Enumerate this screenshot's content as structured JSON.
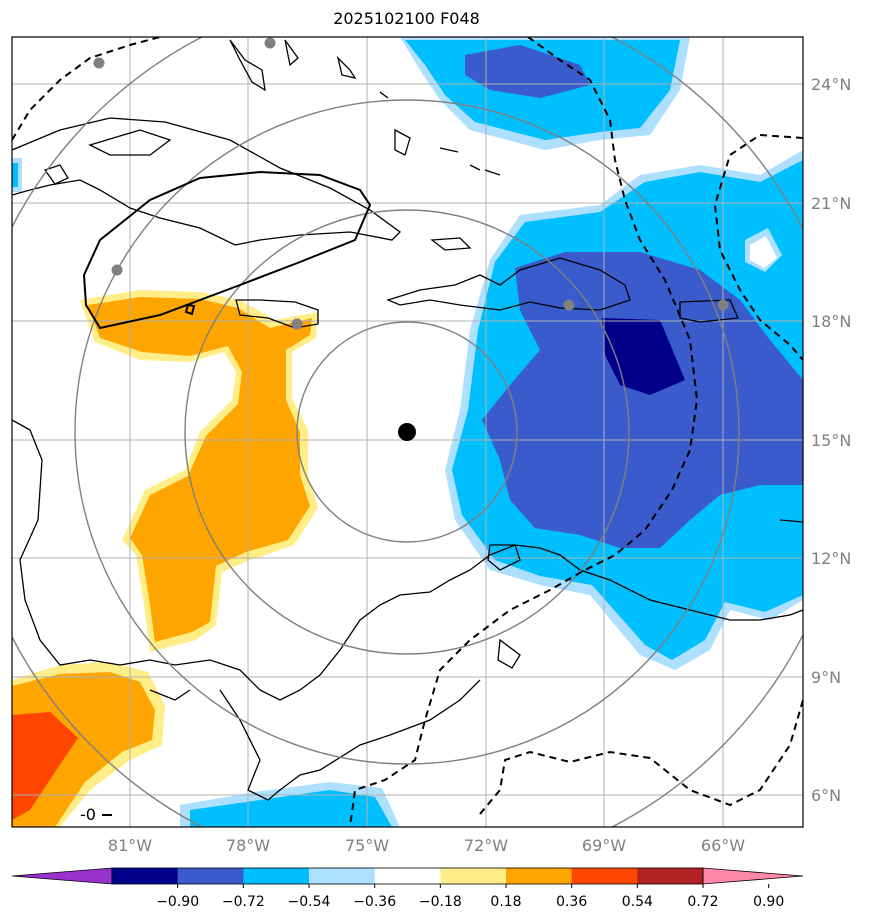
{
  "title": "2025102100 F048",
  "map": {
    "lon_ticks": [
      "81°W",
      "78°W",
      "75°W",
      "72°W",
      "69°W",
      "66°W"
    ],
    "lat_ticks": [
      "24°N",
      "21°N",
      "18°N",
      "15°N",
      "12°N",
      "9°N",
      "6°N"
    ],
    "contour_label": "-0"
  },
  "colorbar": {
    "ticks": [
      "−0.90",
      "−0.72",
      "−0.54",
      "−0.36",
      "−0.18",
      "0.18",
      "0.36",
      "0.54",
      "0.72",
      "0.90"
    ],
    "colors": [
      "#9932CC",
      "#00008B",
      "#3A5BCC",
      "#00BFFF",
      "#ADDFFF",
      "#FFFFFF",
      "#FFEE88",
      "#FFA500",
      "#FF4500",
      "#B22222",
      "#FF88AA"
    ]
  }
}
